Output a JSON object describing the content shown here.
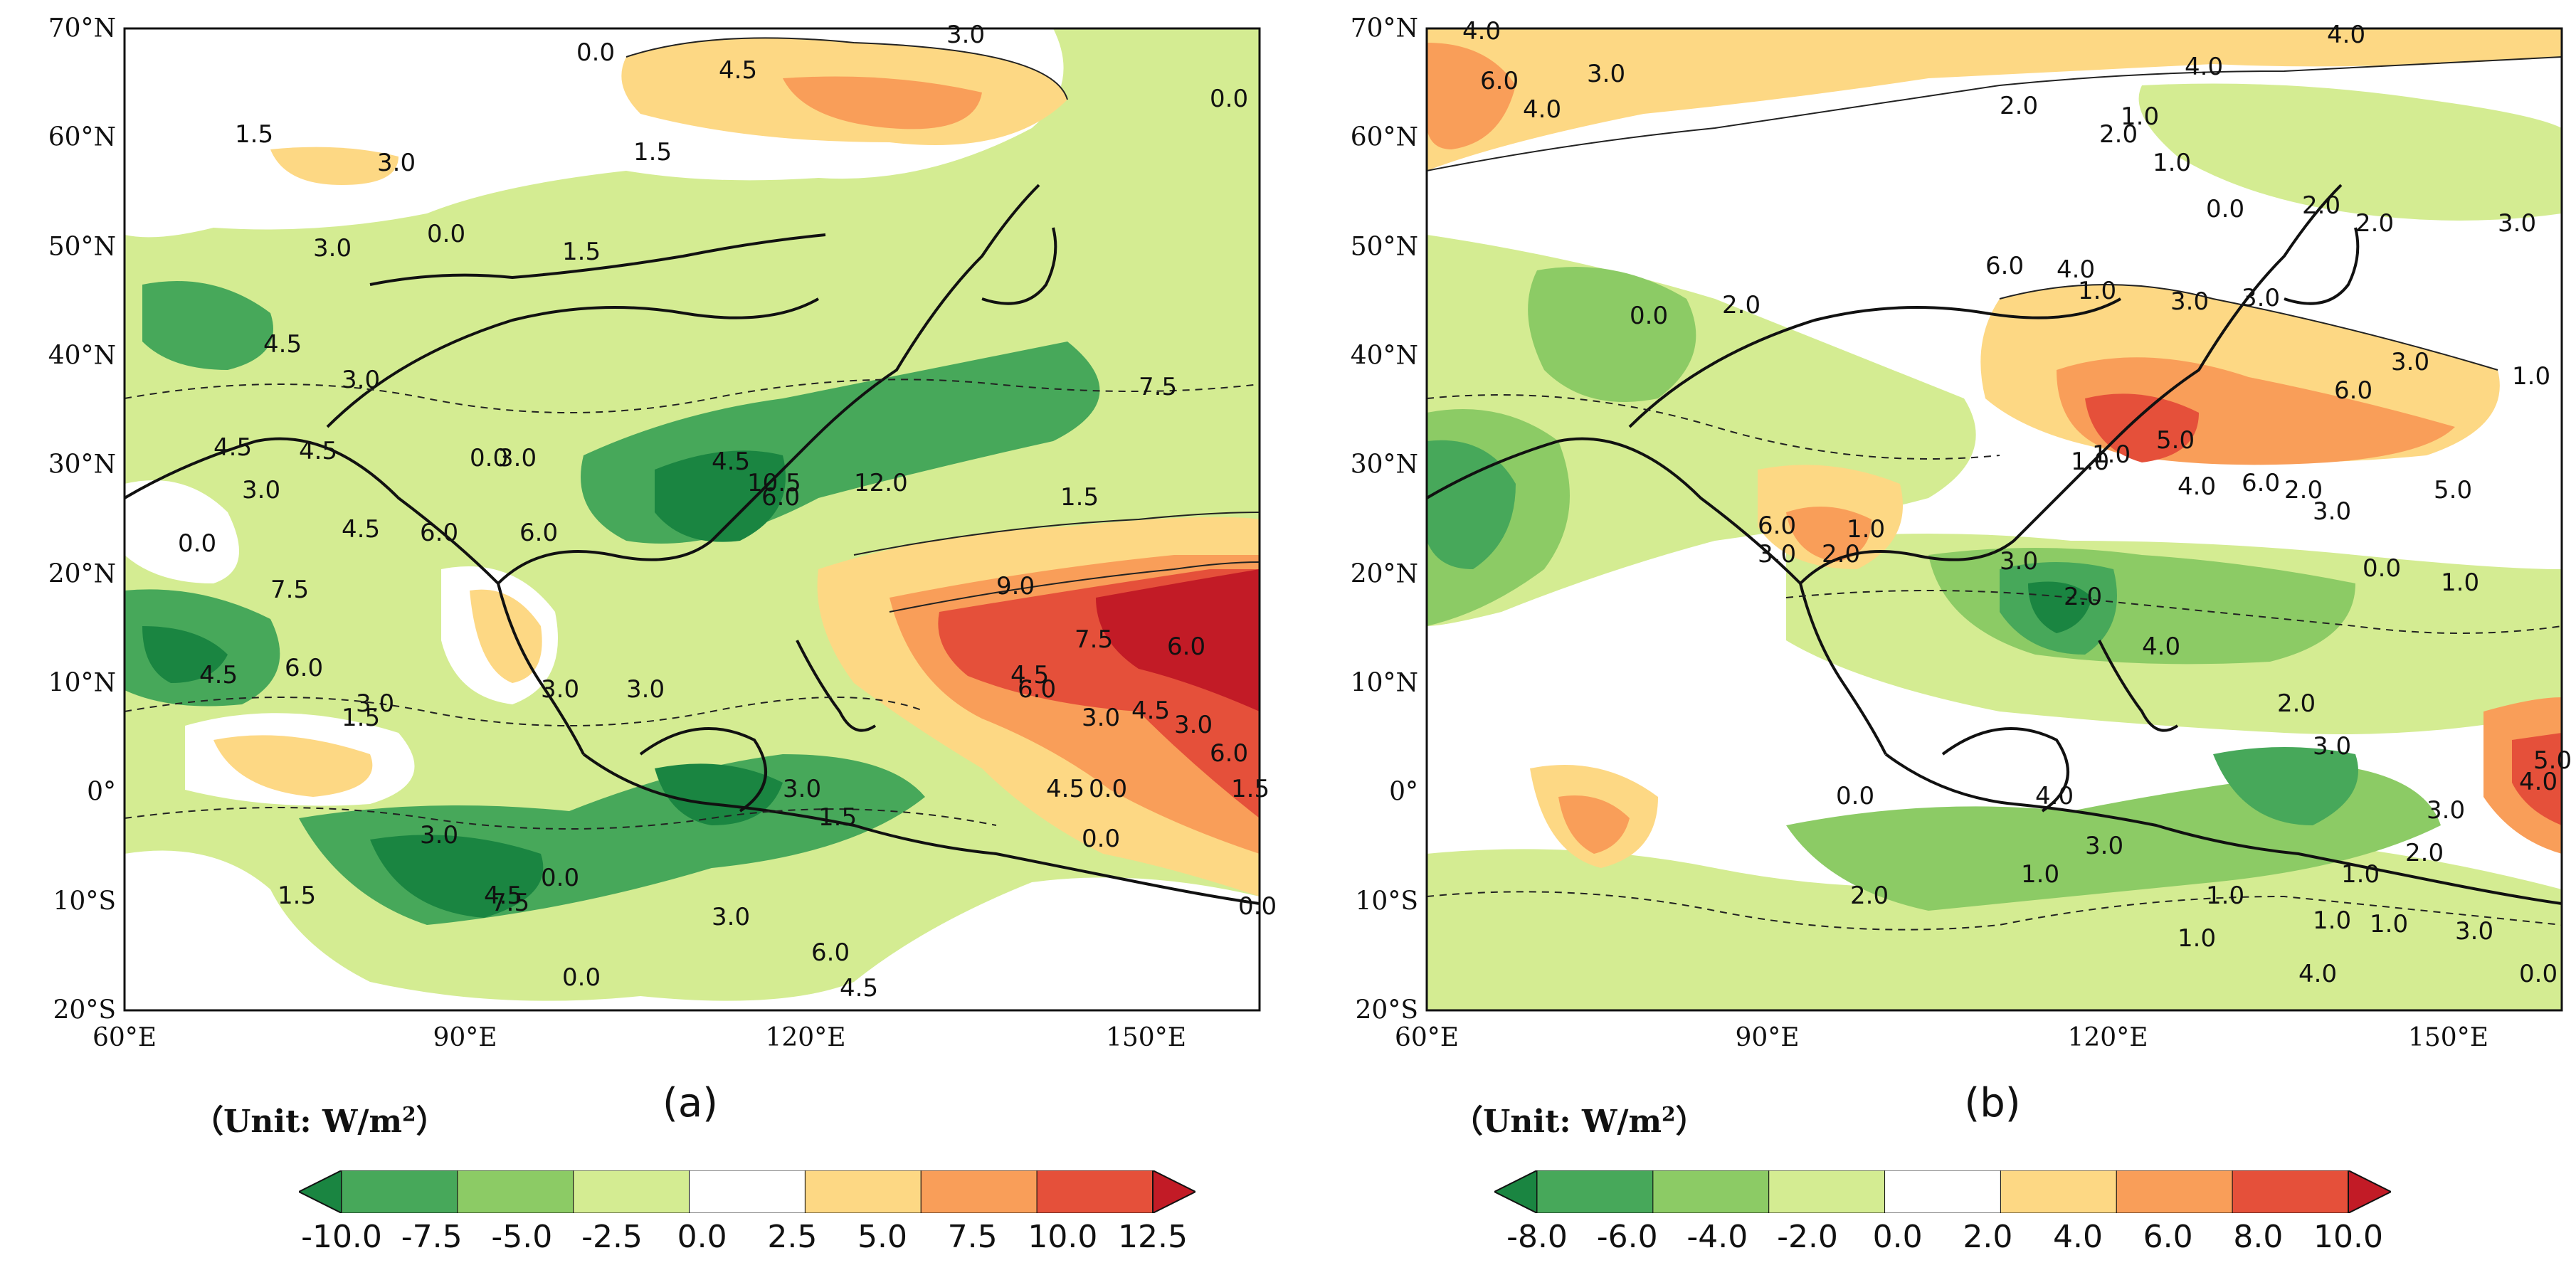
{
  "panels": [
    {
      "id": "a",
      "label": "(a)",
      "unit": "（Unit: W/m",
      "unit_sup": "2",
      "unit_close": "）",
      "lat_ticks": [
        "70°N",
        "60°N",
        "50°N",
        "40°N",
        "30°N",
        "20°N",
        "10°N",
        "0°",
        "10°S",
        "20°S"
      ],
      "lon_ticks": [
        "60°E",
        "90°E",
        "120°E",
        "150°E"
      ],
      "colorbar_ticks": [
        "-10.0",
        "-7.5",
        "-5.0",
        "-2.5",
        "0.0",
        "2.5",
        "5.0",
        "7.5",
        "10.0",
        "12.5"
      ],
      "colorbar_colors": [
        "#1a8541",
        "#47a85a",
        "#8ccb65",
        "#d4ec92",
        "#ffffff",
        "#fdd884",
        "#f99e59",
        "#e5503a",
        "#c21b26"
      ],
      "contour_labels": [
        "0.0",
        "3.0",
        "4.5",
        "1.5",
        "3.0",
        "1.5",
        "0.0",
        "0.0",
        "3.0",
        "4.5",
        "3.0",
        "1.5",
        "4.5",
        "4.5",
        "0.0",
        "3.0",
        "3.0",
        "4.5",
        "6.0",
        "6.0",
        "7.5",
        "1.5",
        "0.0",
        "7.5",
        "6.0",
        "3.0",
        "1.5",
        "4.5",
        "3.0",
        "3.0",
        "4.5",
        "6.0",
        "10.5",
        "12.0",
        "9.0",
        "7.5",
        "6.0",
        "4.5",
        "3.0",
        "4.5",
        "3.0",
        "6.0",
        "6.0",
        "4.5",
        "0.0",
        "1.5",
        "0.0",
        "0.0",
        "1.5",
        "3.0",
        "4.5",
        "0.0",
        "7.5",
        "6.0",
        "3.0",
        "1.5",
        "0.0",
        "3.0",
        "4.5"
      ]
    },
    {
      "id": "b",
      "label": "(b)",
      "unit": "（Unit: W/m",
      "unit_sup": "2",
      "unit_close": "）",
      "lat_ticks": [
        "70°N",
        "60°N",
        "50°N",
        "40°N",
        "30°N",
        "20°N",
        "10°N",
        "0°",
        "10°S",
        "20°S"
      ],
      "lon_ticks": [
        "60°E",
        "90°E",
        "120°E",
        "150°E"
      ],
      "colorbar_ticks": [
        "-8.0",
        "-6.0",
        "-4.0",
        "-2.0",
        "0.0",
        "2.0",
        "4.0",
        "6.0",
        "8.0",
        "10.0"
      ],
      "colorbar_colors": [
        "#1a8541",
        "#47a85a",
        "#8ccb65",
        "#d4ec92",
        "#ffffff",
        "#fdd884",
        "#f99e59",
        "#e5503a",
        "#c21b26"
      ],
      "contour_labels": [
        "4.0",
        "6.0",
        "4.0",
        "3.0",
        "2.0",
        "1.0",
        "2.0",
        "4.0",
        "4.0",
        "1.0",
        "0.0",
        "2.0",
        "3.0",
        "2.0",
        "3.0",
        "1.0",
        "6.0",
        "4.0",
        "1.0",
        "3.0",
        "2.0",
        "0.0",
        "6.0",
        "3.0",
        "1.0",
        "5.0",
        "6.0",
        "5.0",
        "2.0",
        "3.0",
        "4.0",
        "1.0",
        "2.0",
        "6.0",
        "3.0",
        "1.0",
        "3.0",
        "2.0",
        "0.0",
        "1.0",
        "4.0",
        "2.0",
        "3.0",
        "5.0",
        "4.0",
        "3.0",
        "2.0",
        "1.0",
        "1.0",
        "1.0",
        "3.0",
        "4.0",
        "0.0",
        "2.0",
        "1.0",
        "1.0",
        "3.0",
        "1.0",
        "0.0",
        "4.0"
      ]
    }
  ]
}
